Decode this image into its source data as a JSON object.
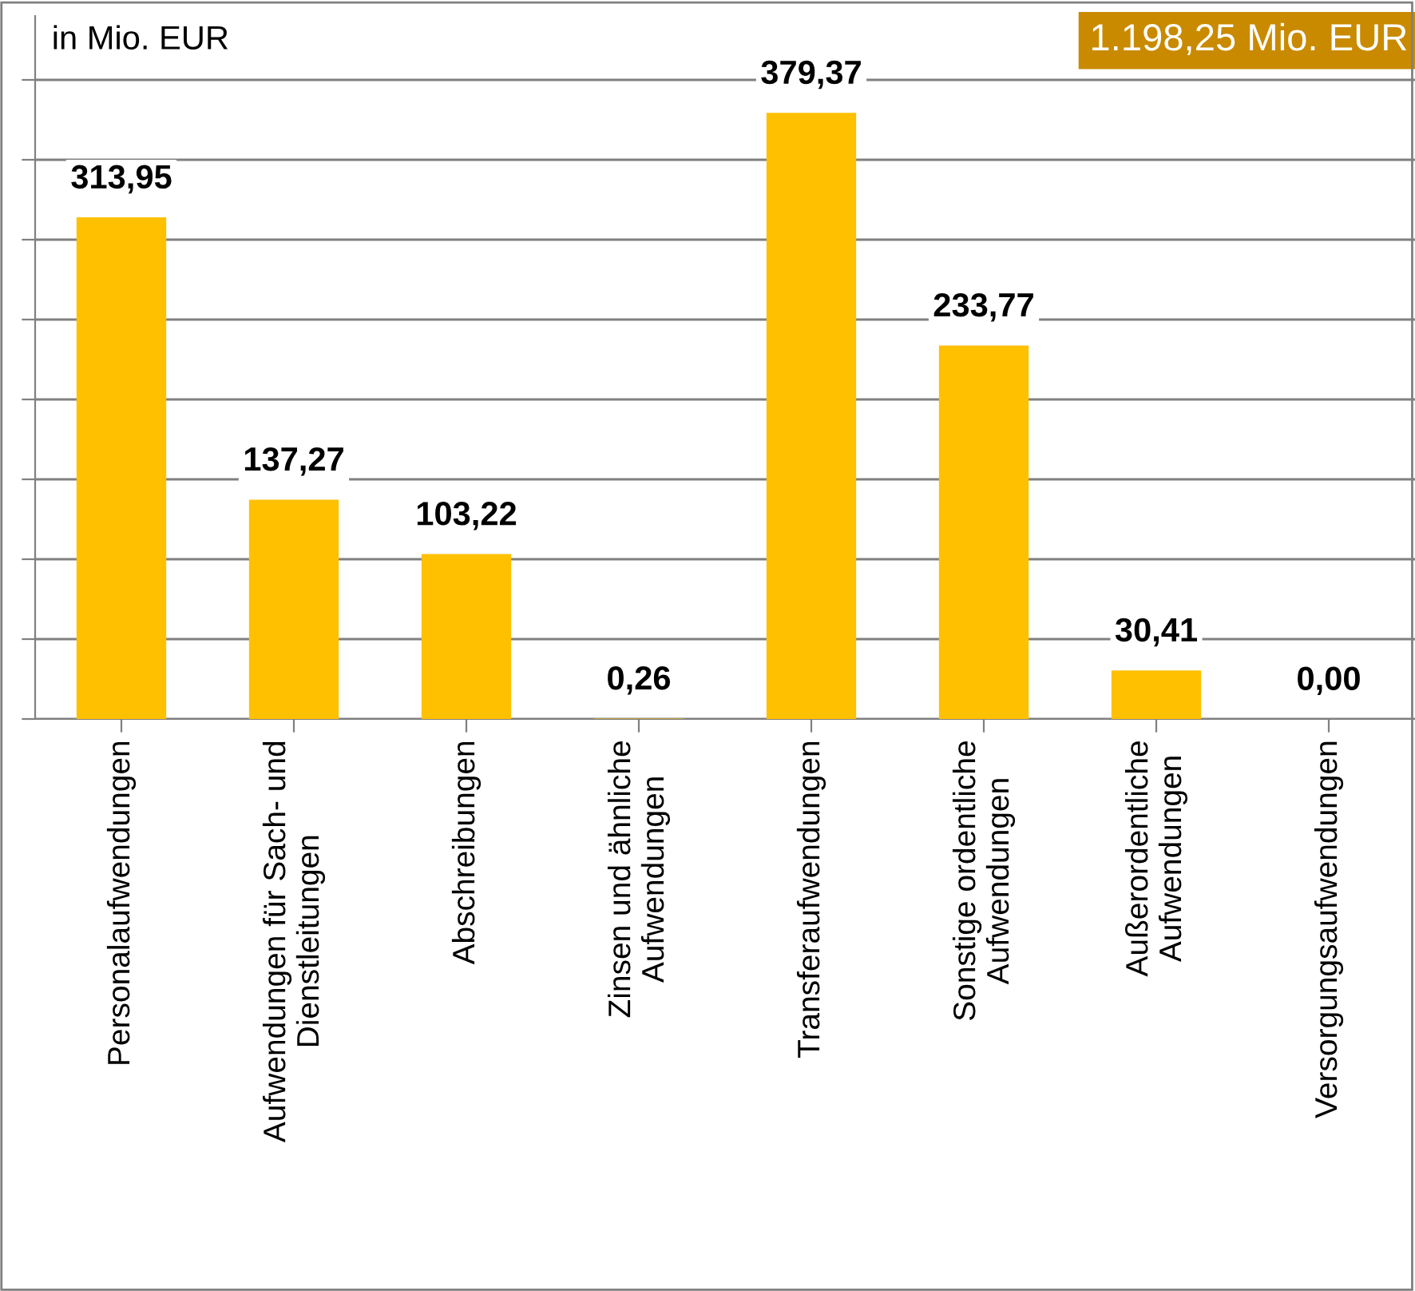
{
  "chart_data": {
    "type": "bar",
    "categories": [
      "Personalaufwendungen",
      "Aufwendungen für Sach- und\nDienstleitungen",
      "Abschreibungen",
      "Zinsen und ähnliche\nAufwendungen",
      "Transferaufwendungen",
      "Sonstige ordentliche\nAufwendungen",
      "Außerordentliche\nAufwendungen",
      "Versorgungsaufwendungen"
    ],
    "values": [
      313.95,
      137.27,
      103.22,
      0.26,
      379.37,
      233.77,
      30.41,
      0.0
    ],
    "color": "#ffc000",
    "value_labels": [
      "313,95",
      "137,27",
      "103,22",
      "0,26",
      "379,37",
      "233,77",
      "30,41",
      "0,00"
    ],
    "ylim": [
      0,
      440
    ],
    "yticks": [
      {
        "value": 0,
        "label": null
      },
      {
        "value": 50,
        "label": null
      },
      {
        "value": 100,
        "label": null
      },
      {
        "value": 150,
        "label": null
      },
      {
        "value": 200,
        "label": null
      },
      {
        "value": 250,
        "label": null
      },
      {
        "value": 300,
        "label": null
      },
      {
        "value": 350,
        "label": null
      },
      {
        "value": 400,
        "label": null
      }
    ],
    "grid": "y",
    "annotations": [
      "in Mio. EUR",
      "1.198,25 Mio. EUR"
    ]
  }
}
